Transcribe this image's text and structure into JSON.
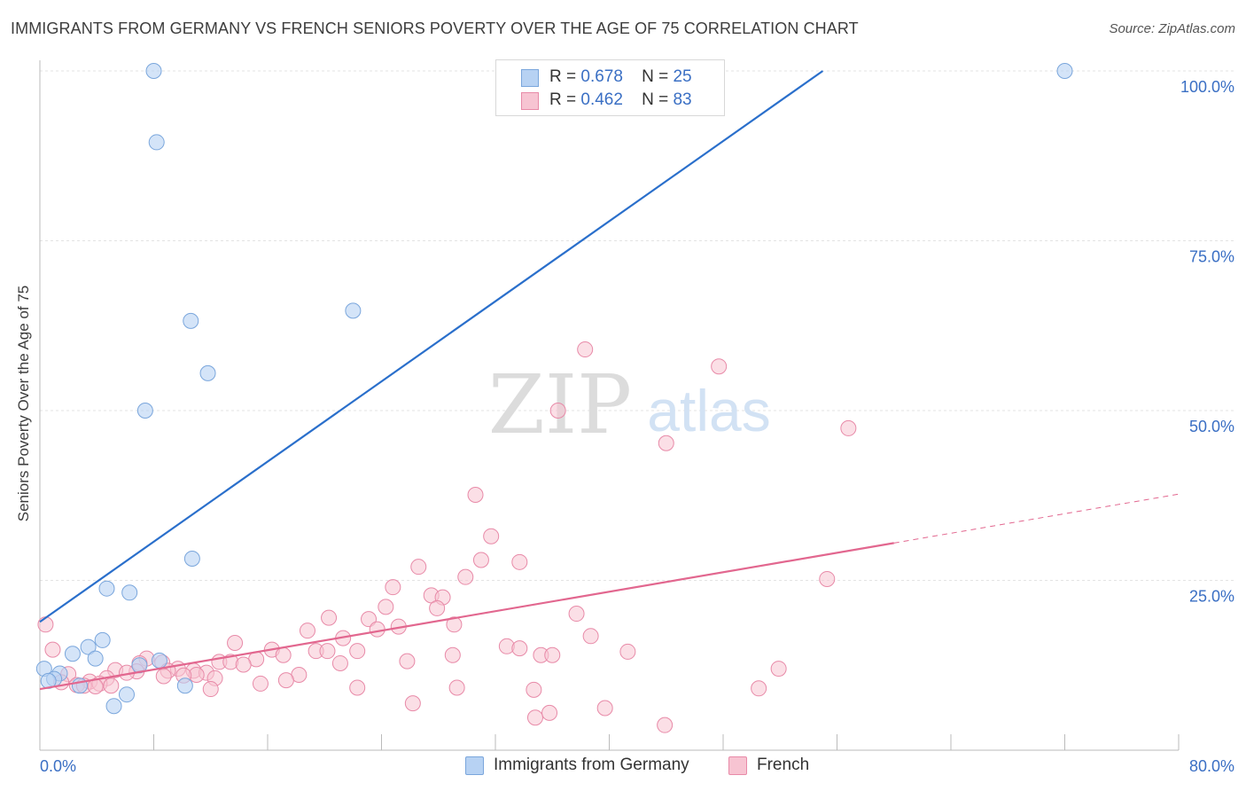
{
  "header": {
    "title": "IMMIGRANTS FROM GERMANY VS FRENCH SENIORS POVERTY OVER THE AGE OF 75 CORRELATION CHART",
    "source": "Source: ZipAtlas.com"
  },
  "watermark": {
    "zip": "ZIP",
    "atlas": "atlas"
  },
  "legend": {
    "rows": [
      {
        "r_label": "R =",
        "r_value": "0.678",
        "n_label": "N =",
        "n_value": "25"
      },
      {
        "r_label": "R =",
        "r_value": "0.462",
        "n_label": "N =",
        "n_value": "83"
      }
    ]
  },
  "bottom_legend": {
    "series1": "Immigrants from Germany",
    "series2": "French"
  },
  "colors": {
    "germany_fill": "#b7d2f3",
    "germany_stroke": "#7aa6dc",
    "germany_line": "#2a6fcb",
    "french_fill": "#f7c4d2",
    "french_stroke": "#e88aa8",
    "french_line": "#e2678f",
    "axis_label": "#3a6fc4",
    "grid": "#e3e3e3"
  },
  "chart_data": {
    "type": "scatter",
    "title": "IMMIGRANTS FROM GERMANY VS FRENCH SENIORS POVERTY OVER THE AGE OF 75 CORRELATION CHART",
    "xlabel": "",
    "ylabel": "Seniors Poverty Over the Age of 75",
    "xlim": [
      0,
      80
    ],
    "ylim": [
      0,
      100
    ],
    "x_tick_labels": [
      "0.0%",
      "80.0%"
    ],
    "y_ticks": [
      25,
      50,
      75,
      100
    ],
    "y_tick_labels": [
      "25.0%",
      "50.0%",
      "75.0%",
      "100.0%"
    ],
    "grid": true,
    "legend_position": "top-center",
    "series": [
      {
        "name": "Immigrants from Germany",
        "r": 0.678,
        "n": 25,
        "trend": {
          "x": [
            0,
            55
          ],
          "y": [
            18.9,
            100
          ]
        },
        "points": [
          {
            "x": 8.0,
            "y": 100
          },
          {
            "x": 40.0,
            "y": 100
          },
          {
            "x": 72.0,
            "y": 100
          },
          {
            "x": 8.2,
            "y": 89.5
          },
          {
            "x": 22.0,
            "y": 64.7
          },
          {
            "x": 10.6,
            "y": 63.2
          },
          {
            "x": 11.8,
            "y": 55.5
          },
          {
            "x": 7.4,
            "y": 50.0
          },
          {
            "x": 10.7,
            "y": 28.2
          },
          {
            "x": 4.7,
            "y": 23.8
          },
          {
            "x": 6.3,
            "y": 23.2
          },
          {
            "x": 4.4,
            "y": 16.2
          },
          {
            "x": 3.4,
            "y": 15.2
          },
          {
            "x": 2.3,
            "y": 14.2
          },
          {
            "x": 3.9,
            "y": 13.5
          },
          {
            "x": 8.4,
            "y": 13.2
          },
          {
            "x": 7.0,
            "y": 12.5
          },
          {
            "x": 0.3,
            "y": 12.0
          },
          {
            "x": 1.4,
            "y": 11.3
          },
          {
            "x": 1.0,
            "y": 10.5
          },
          {
            "x": 0.6,
            "y": 10.2
          },
          {
            "x": 2.8,
            "y": 9.5
          },
          {
            "x": 10.2,
            "y": 9.5
          },
          {
            "x": 6.1,
            "y": 8.2
          },
          {
            "x": 5.2,
            "y": 6.5
          }
        ]
      },
      {
        "name": "French",
        "r": 0.462,
        "n": 83,
        "trend": {
          "x": [
            0,
            60
          ],
          "y": [
            9.0,
            30.5
          ]
        },
        "trend_extension": {
          "x": [
            60,
            80
          ],
          "y": [
            30.5,
            37.7
          ]
        },
        "points": [
          {
            "x": 38.3,
            "y": 59.0
          },
          {
            "x": 47.7,
            "y": 56.5
          },
          {
            "x": 36.4,
            "y": 50.0
          },
          {
            "x": 44.0,
            "y": 45.2
          },
          {
            "x": 56.8,
            "y": 47.4
          },
          {
            "x": 30.6,
            "y": 37.6
          },
          {
            "x": 31.7,
            "y": 31.5
          },
          {
            "x": 31.0,
            "y": 28.0
          },
          {
            "x": 33.7,
            "y": 27.7
          },
          {
            "x": 26.6,
            "y": 27.0
          },
          {
            "x": 29.9,
            "y": 25.5
          },
          {
            "x": 55.3,
            "y": 25.2
          },
          {
            "x": 24.8,
            "y": 24.0
          },
          {
            "x": 27.5,
            "y": 22.8
          },
          {
            "x": 28.3,
            "y": 22.5
          },
          {
            "x": 24.3,
            "y": 21.1
          },
          {
            "x": 27.9,
            "y": 20.9
          },
          {
            "x": 37.7,
            "y": 20.1
          },
          {
            "x": 20.3,
            "y": 19.5
          },
          {
            "x": 23.1,
            "y": 19.3
          },
          {
            "x": 29.1,
            "y": 18.5
          },
          {
            "x": 25.2,
            "y": 18.2
          },
          {
            "x": 23.7,
            "y": 17.8
          },
          {
            "x": 18.8,
            "y": 17.6
          },
          {
            "x": 38.7,
            "y": 16.8
          },
          {
            "x": 21.3,
            "y": 16.5
          },
          {
            "x": 13.7,
            "y": 15.8
          },
          {
            "x": 32.8,
            "y": 15.3
          },
          {
            "x": 33.7,
            "y": 15.0
          },
          {
            "x": 16.3,
            "y": 14.8
          },
          {
            "x": 19.4,
            "y": 14.6
          },
          {
            "x": 20.2,
            "y": 14.6
          },
          {
            "x": 22.3,
            "y": 14.6
          },
          {
            "x": 41.3,
            "y": 14.5
          },
          {
            "x": 17.1,
            "y": 14.0
          },
          {
            "x": 35.2,
            "y": 14.0
          },
          {
            "x": 7.5,
            "y": 13.5
          },
          {
            "x": 15.2,
            "y": 13.4
          },
          {
            "x": 25.8,
            "y": 13.1
          },
          {
            "x": 12.6,
            "y": 13.0
          },
          {
            "x": 13.4,
            "y": 13.0
          },
          {
            "x": 8.6,
            "y": 12.9
          },
          {
            "x": 7.0,
            "y": 12.8
          },
          {
            "x": 21.1,
            "y": 12.8
          },
          {
            "x": 14.3,
            "y": 12.6
          },
          {
            "x": 9.7,
            "y": 12.0
          },
          {
            "x": 51.9,
            "y": 12.0
          },
          {
            "x": 5.3,
            "y": 11.8
          },
          {
            "x": 9.0,
            "y": 11.7
          },
          {
            "x": 10.8,
            "y": 11.7
          },
          {
            "x": 6.8,
            "y": 11.6
          },
          {
            "x": 6.1,
            "y": 11.4
          },
          {
            "x": 11.7,
            "y": 11.4
          },
          {
            "x": 2.0,
            "y": 11.2
          },
          {
            "x": 11.0,
            "y": 11.1
          },
          {
            "x": 18.2,
            "y": 11.1
          },
          {
            "x": 10.1,
            "y": 11.0
          },
          {
            "x": 8.7,
            "y": 10.9
          },
          {
            "x": 4.7,
            "y": 10.6
          },
          {
            "x": 12.3,
            "y": 10.6
          },
          {
            "x": 17.3,
            "y": 10.3
          },
          {
            "x": 3.5,
            "y": 10.1
          },
          {
            "x": 1.5,
            "y": 10.0
          },
          {
            "x": 4.2,
            "y": 9.8
          },
          {
            "x": 15.5,
            "y": 9.8
          },
          {
            "x": 2.6,
            "y": 9.6
          },
          {
            "x": 3.1,
            "y": 9.5
          },
          {
            "x": 3.9,
            "y": 9.4
          },
          {
            "x": 22.3,
            "y": 9.2
          },
          {
            "x": 29.3,
            "y": 9.2
          },
          {
            "x": 50.5,
            "y": 9.1
          },
          {
            "x": 34.7,
            "y": 8.9
          },
          {
            "x": 26.2,
            "y": 6.9
          },
          {
            "x": 39.7,
            "y": 6.2
          },
          {
            "x": 35.8,
            "y": 5.5
          },
          {
            "x": 34.8,
            "y": 4.8
          },
          {
            "x": 43.9,
            "y": 3.7
          },
          {
            "x": 0.4,
            "y": 18.5
          },
          {
            "x": 0.9,
            "y": 14.8
          },
          {
            "x": 36.0,
            "y": 14.0
          },
          {
            "x": 29.0,
            "y": 14.0
          },
          {
            "x": 12.0,
            "y": 9.0
          },
          {
            "x": 5.0,
            "y": 9.5
          }
        ]
      }
    ]
  }
}
